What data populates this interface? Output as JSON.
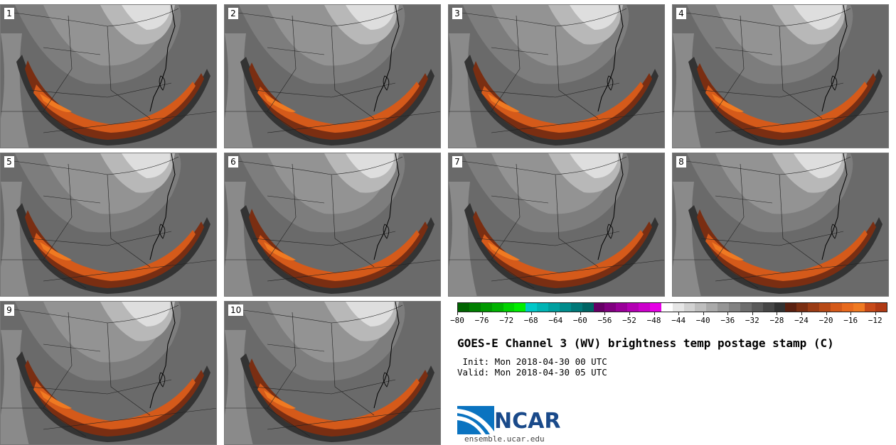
{
  "panels": [
    {
      "label": "1"
    },
    {
      "label": "2"
    },
    {
      "label": "3"
    },
    {
      "label": "4"
    },
    {
      "label": "5"
    },
    {
      "label": "6"
    },
    {
      "label": "7"
    },
    {
      "label": "8"
    },
    {
      "label": "9"
    },
    {
      "label": "10"
    }
  ],
  "colorbar": {
    "ticks": [
      "−80",
      "−76",
      "−72",
      "−68",
      "−64",
      "−60",
      "−56",
      "−52",
      "−48",
      "−44",
      "−40",
      "−36",
      "−32",
      "−28",
      "−24",
      "−20",
      "−16",
      "−12"
    ],
    "colors": [
      "#006400",
      "#007f00",
      "#009900",
      "#00b300",
      "#00d400",
      "#00ee00",
      "#00c8c8",
      "#00b4b4",
      "#00a0a0",
      "#008c8c",
      "#007878",
      "#006464",
      "#660066",
      "#800080",
      "#990099",
      "#b300b3",
      "#cc00cc",
      "#e600e6",
      "#ffffff",
      "#e6e6e6",
      "#d2d2d2",
      "#bebebe",
      "#aaaaaa",
      "#969696",
      "#828282",
      "#6e6e6e",
      "#5a5a5a",
      "#464646",
      "#323232",
      "#5a2010",
      "#7a2e12",
      "#9a3b14",
      "#b84a16",
      "#d55a1a",
      "#e86a1e",
      "#f07a22",
      "#c84a18",
      "#b03a14"
    ]
  },
  "title": "GOES-E Channel 3 (WV) brightness temp postage stamp (C)",
  "init": " Init: Mon 2018-04-30 00 UTC",
  "valid": "Valid: Mon 2018-04-30 05 UTC",
  "logo": {
    "text": "NCAR",
    "url": "ensemble.ucar.edu"
  }
}
